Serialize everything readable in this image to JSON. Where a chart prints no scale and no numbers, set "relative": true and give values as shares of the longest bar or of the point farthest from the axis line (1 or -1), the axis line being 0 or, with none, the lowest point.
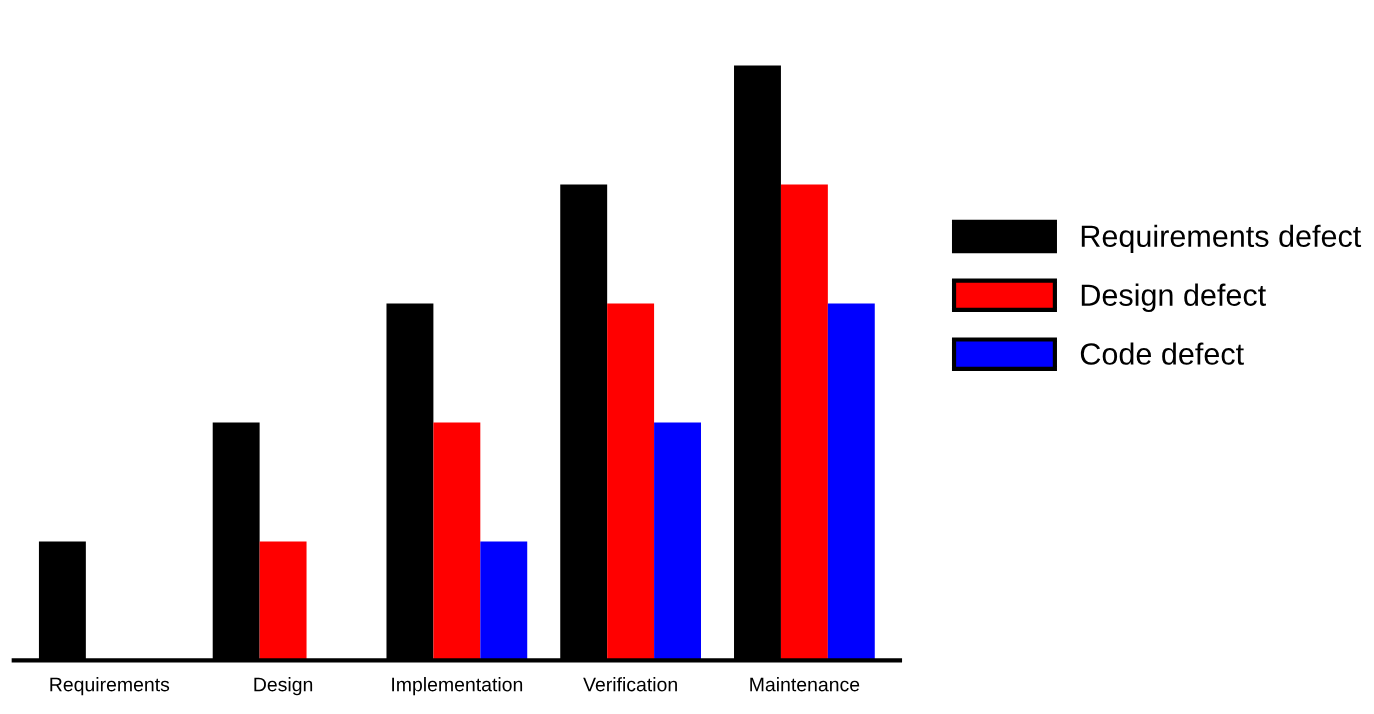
{
  "chart_data": {
    "type": "bar",
    "relative": true,
    "categories": [
      "Requirements",
      "Design",
      "Implementation",
      "Verification",
      "Maintenance"
    ],
    "series": [
      {
        "name": "Requirements defect",
        "color": "#000000",
        "values": [
          0.2,
          0.4,
          0.6,
          0.8,
          1.0
        ]
      },
      {
        "name": "Design defect",
        "color": "#ff0000",
        "values": [
          null,
          0.2,
          0.4,
          0.6,
          0.8
        ]
      },
      {
        "name": "Code defect",
        "color": "#0000ff",
        "values": [
          null,
          null,
          0.2,
          0.4,
          0.6
        ]
      }
    ],
    "legend": "right",
    "grid": false
  }
}
